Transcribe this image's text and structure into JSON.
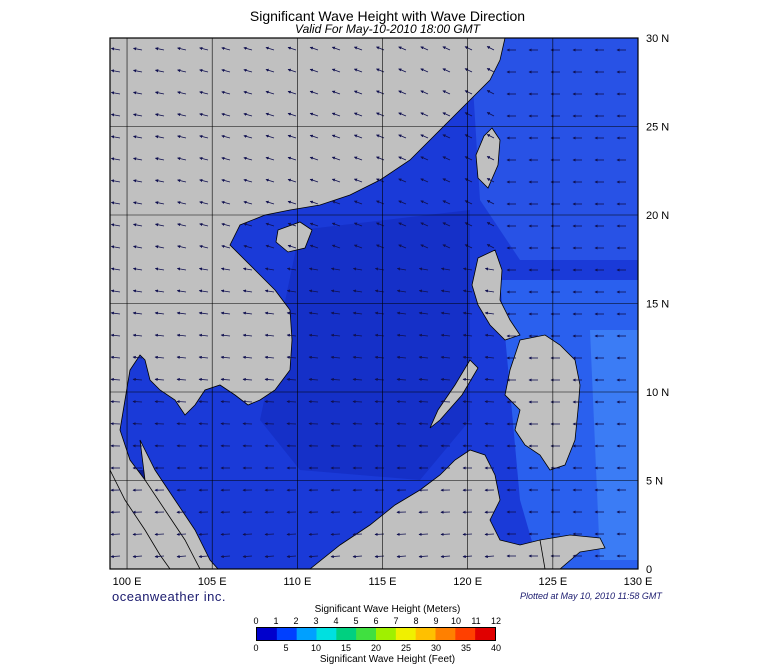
{
  "header": {
    "title": "Significant Wave Height with Wave Direction",
    "subtitle": "Valid For May-10-2010 18:00 GMT"
  },
  "map": {
    "region": "South China Sea",
    "lon_range": [
      99,
      130
    ],
    "lat_range": [
      0,
      30
    ],
    "lon_ticks": [
      "100 E",
      "105 E",
      "110 E",
      "115 E",
      "120 E",
      "125 E",
      "130 E"
    ],
    "lat_ticks": [
      "0",
      "5 N",
      "10 N",
      "15 N",
      "20 N",
      "25 N",
      "30 N"
    ],
    "grid": true,
    "land_color": "#c0c0c0",
    "arrow_color": "#101050"
  },
  "footer": {
    "brand": "oceanweather inc.",
    "plotted": "Plotted at May 10, 2010 11:58 GMT"
  },
  "colorbar": {
    "title_meters": "Significant Wave Height (Meters)",
    "title_feet": "Significant Wave Height (Feet)",
    "meters_ticks": [
      "0",
      "1",
      "2",
      "3",
      "4",
      "5",
      "6",
      "7",
      "8",
      "9",
      "10",
      "11",
      "12"
    ],
    "feet_ticks": [
      "0",
      "5",
      "10",
      "15",
      "20",
      "25",
      "30",
      "35",
      "40"
    ],
    "colors": [
      "#0000cc",
      "#0040ff",
      "#00a0ff",
      "#00e0e0",
      "#00d080",
      "#40e040",
      "#a0f000",
      "#f0f000",
      "#ffc000",
      "#ff8000",
      "#ff4000",
      "#e00000"
    ]
  }
}
